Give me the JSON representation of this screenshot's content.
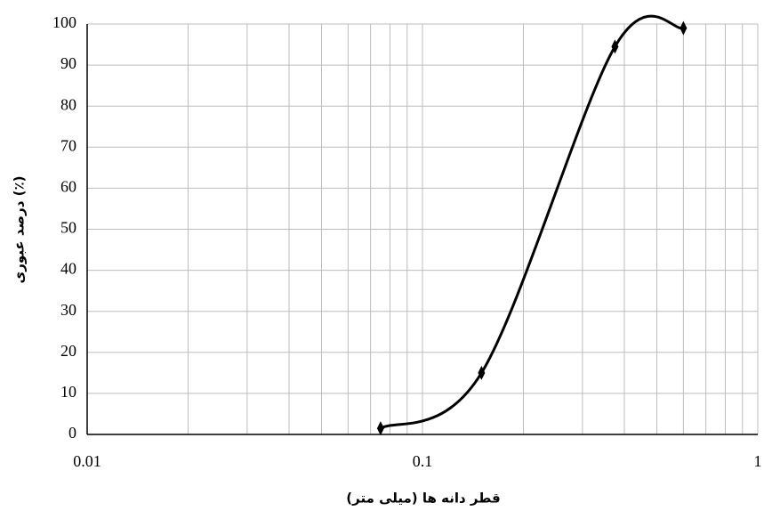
{
  "chart_data": {
    "type": "line",
    "x_label": "قطر دانه ها (میلی متر)",
    "y_label": "درصد عبوری (٪)",
    "x_scale": "log",
    "xlim": [
      0.01,
      1
    ],
    "xticks": [
      0.01,
      0.1,
      1
    ],
    "ylim": [
      0,
      100
    ],
    "yticks": [
      0,
      10,
      20,
      30,
      40,
      50,
      60,
      70,
      80,
      90,
      100
    ],
    "grid": true,
    "series": [
      {
        "color": "#000000",
        "x": [
          0.075,
          0.15,
          0.375,
          0.6
        ],
        "values": [
          1.5,
          15,
          94.5,
          99
        ]
      }
    ]
  }
}
